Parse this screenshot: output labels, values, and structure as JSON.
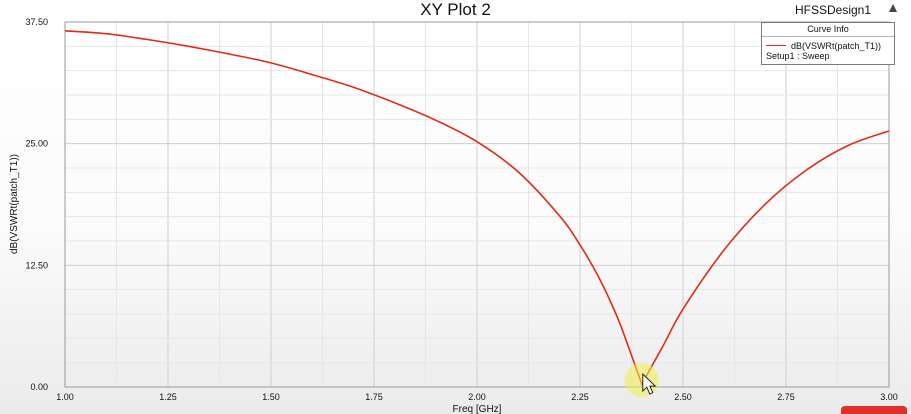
{
  "window": {
    "title": "XY Plot 2",
    "design_name": "HFSSDesign1"
  },
  "legend": {
    "header": "Curve Info",
    "entry": "dB(VSWRt(patch_T1))",
    "subtitle": "Setup1 : Sweep",
    "line_color": "#e02c16"
  },
  "chart_data": {
    "type": "line",
    "title": "XY Plot 2",
    "xlabel": "Freq [GHz]",
    "ylabel": "dB(VSWRt(patch_T1))",
    "xlim": [
      1.0,
      3.0
    ],
    "ylim": [
      0.0,
      37.5
    ],
    "x_ticks": [
      "1.00",
      "1.25",
      "1.50",
      "1.75",
      "2.00",
      "2.25",
      "2.50",
      "2.75",
      "3.00"
    ],
    "y_ticks": [
      "0.00",
      "12.50",
      "25.00",
      "37.50"
    ],
    "grid": true,
    "legend_position": "top-right",
    "series": [
      {
        "name": "dB(VSWRt(patch_T1))",
        "color": "#e02c16",
        "x": [
          1.0,
          1.1,
          1.2,
          1.3,
          1.4,
          1.5,
          1.6,
          1.7,
          1.8,
          1.9,
          2.0,
          2.1,
          2.2,
          2.25,
          2.3,
          2.35,
          2.4,
          2.45,
          2.5,
          2.6,
          2.7,
          2.8,
          2.9,
          3.0
        ],
        "values": [
          36.6,
          36.3,
          35.7,
          35.0,
          34.2,
          33.3,
          32.1,
          30.8,
          29.2,
          27.4,
          25.2,
          22.1,
          17.6,
          14.6,
          10.9,
          6.2,
          0.3,
          4.1,
          8.0,
          14.1,
          18.8,
          22.3,
          24.8,
          26.3
        ]
      }
    ],
    "marker": {
      "x": 2.4,
      "y": 0.3
    }
  }
}
